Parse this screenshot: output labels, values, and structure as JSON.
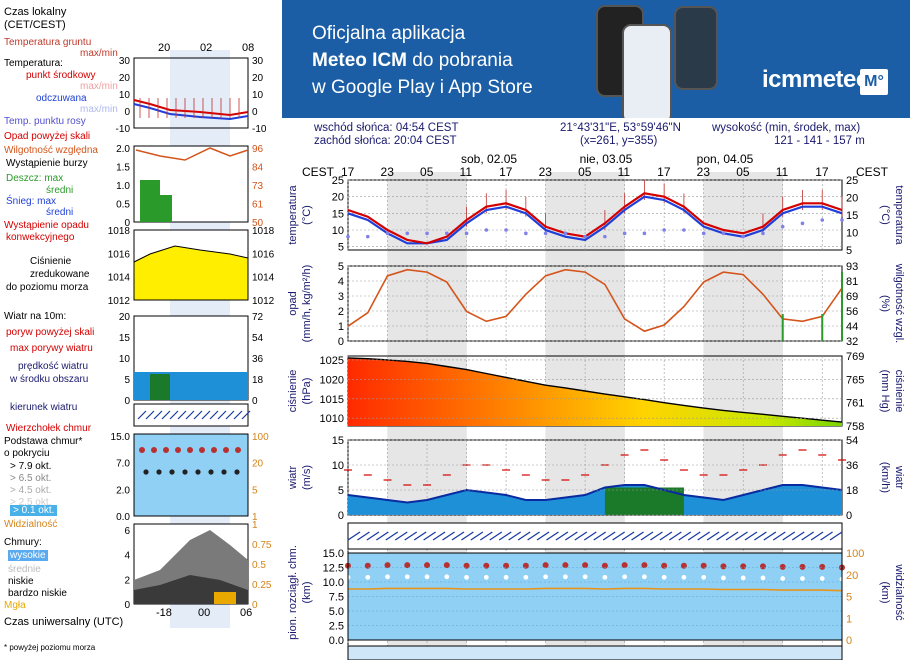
{
  "banner": {
    "line1": "Oficjalna aplikacja",
    "line2_bold": "Meteo ICM",
    "line2_rest": " do pobrania",
    "line3": "w Google Play i App Store",
    "logo": "icmmeteo",
    "logo_mark": "M°"
  },
  "meta": {
    "sunrise": "wschód słońca: 04:54 CEST",
    "sunset": "zachód słońca: 20:04 CEST",
    "coords": "21°43'31\"E, 53°59'46\"N",
    "grid": "(x=261, y=355)",
    "elev_label": "wysokość (min, środek, max)",
    "elev_values": "121 - 141 - 157 m"
  },
  "time_axis": {
    "top_label": "CEST",
    "hours": [
      "17",
      "23",
      "05",
      "11",
      "17",
      "23",
      "05",
      "11",
      "17",
      "23",
      "05",
      "11",
      "17"
    ],
    "days": [
      "sob, 02.05",
      "nie, 03.05",
      "pon, 04.05"
    ]
  },
  "legend": {
    "local_time": "Czas lokalny",
    "local_time_sub": "(CET/CEST)",
    "local_ticks": [
      "20",
      "02",
      "08"
    ],
    "soil_temp": "Temperatura gruntu",
    "soil_temp_sub": "max/min",
    "temperature": "Temperatura:",
    "mid_point": "punkt środkowy",
    "max_min": "max/min",
    "feels": "odczuwana",
    "max_min2": "max/min",
    "dew": "Temp. punktu rosy",
    "temp_ticks": [
      "30",
      "20",
      "10",
      "0",
      "-10"
    ],
    "precip_over": "Opad powyżej skali",
    "humidity": "Wilgotność względna",
    "storm": "Wystąpienie burzy",
    "rain_max": "Deszcz: max",
    "rain_avg": "średni",
    "snow_max": "Śnieg: max",
    "snow_avg": "średni",
    "conv": "Wystąpienie opadu",
    "conv2": "konwekcyjnego",
    "precip_ticks": [
      "2.0",
      "1.5",
      "1.0",
      "0.5",
      "0"
    ],
    "hum_ticks": [
      "96",
      "84",
      "73",
      "61",
      "50"
    ],
    "pressure": "Ciśnienie",
    "pressure2": "zredukowane",
    "pressure3": "do poziomu morza",
    "pres_ticks": [
      "1018",
      "1016",
      "1014",
      "1012"
    ],
    "wind": "Wiatr na 10m:",
    "gust_over": "poryw powyżej skali",
    "gust_max": "max porywy wiatru",
    "wind_speed": "prędkość wiatru",
    "wind_avg": "w środku obszaru",
    "wind_ticks": [
      "20",
      "15",
      "10",
      "5",
      "0"
    ],
    "wind_kmh": [
      "72",
      "54",
      "36",
      "18",
      "0"
    ],
    "wind_dir": "kierunek wiatru",
    "cloud_top": "Wierzchołek chmur",
    "cloud_base": "Podstawa chmur*",
    "cover": "o pokryciu",
    "okt1": "> 7.9 okt.",
    "okt2": "> 6.5 okt.",
    "okt3": "> 4.5 okt.",
    "okt4": "> 2.5 okt.",
    "okt5": "> 0.1 okt.",
    "cb_ticks": [
      "15.0",
      "7.0",
      "2.0",
      "0.0"
    ],
    "vis": "Widzialność",
    "vis_ticks": [
      "100",
      "20",
      "5",
      "1"
    ],
    "clouds": "Chmury:",
    "high": "wysokie",
    "mid": "średnie",
    "low": "niskie",
    "vlow": "bardzo niskie",
    "fog": "Mgła",
    "cl_ticks": [
      "6",
      "4",
      "2",
      "0"
    ],
    "cl_frac": [
      "1",
      "0.75",
      "0.5",
      "0.25",
      "0"
    ],
    "utc": "Czas uniwersalny (UTC)",
    "utc_ticks": [
      "18",
      "00",
      "06"
    ],
    "footnote": "* powyżej poziomu morza"
  },
  "panels": {
    "temp": {
      "left": "temperatura",
      "left2": "(°C)",
      "right": "temperatura",
      "right2": "(°C)"
    },
    "precip": {
      "left": "opad",
      "left2": "(mm/h, kg/m²/h)",
      "right": "wilgotność wzgl.",
      "right2": "(%)"
    },
    "pres": {
      "left": "ciśnienie",
      "left2": "(hPa)",
      "right": "ciśnienie",
      "right2": "(mm Hg)"
    },
    "wind": {
      "left": "wiatr",
      "left2": "(m/s)",
      "right": "wiatr",
      "right2": "(km/h)"
    },
    "cloud": {
      "left": "pion. rozciągł. chm.",
      "left2": "(km)",
      "right": "widzialność",
      "right2": "(km)"
    }
  },
  "colors": {
    "banner": "#1b5ea6",
    "temp": "#d40000",
    "feels": "#1f3fd8",
    "dew": "#8080e8",
    "humidity": "#d4541a",
    "pressure_fill": "#ffee00",
    "wind_line": "#0a2aa0",
    "navy": "#1a1a6e"
  },
  "chart_data": [
    {
      "type": "line",
      "title": "temperatura",
      "ylabel": "(°C)",
      "x": [
        "17",
        "20",
        "23",
        "02",
        "05",
        "08",
        "11",
        "14",
        "17",
        "20",
        "23",
        "02",
        "05",
        "08",
        "11",
        "14",
        "17",
        "20",
        "23",
        "02",
        "05",
        "08",
        "11",
        "14",
        "17",
        "20"
      ],
      "ylim": [
        4,
        25
      ],
      "yticks": [
        5,
        10,
        15,
        20,
        25
      ],
      "series": [
        {
          "name": "Temperatura",
          "values": [
            16,
            14,
            10,
            7,
            6,
            8,
            13,
            17,
            18,
            16,
            11,
            9,
            8,
            12,
            17,
            21,
            20,
            17,
            12,
            10,
            9,
            11,
            16,
            18,
            18,
            16
          ]
        },
        {
          "name": "odczuwana",
          "values": [
            15,
            13,
            9,
            6,
            6,
            7,
            12,
            16,
            17,
            15,
            10,
            8,
            7,
            11,
            16,
            20,
            19,
            16,
            11,
            9,
            8,
            10,
            15,
            17,
            17,
            15
          ]
        },
        {
          "name": "Temp. punktu rosy",
          "values": [
            8,
            8,
            9,
            9,
            9,
            9,
            9,
            10,
            10,
            9,
            9,
            9,
            8,
            8,
            9,
            9,
            10,
            10,
            9,
            9,
            8,
            9,
            11,
            12,
            13,
            13
          ]
        }
      ]
    },
    {
      "type": "line",
      "title": "opad / wilgotność wzgl.",
      "ylim": [
        0,
        5
      ],
      "yticks": [
        0,
        1,
        2,
        3,
        4,
        5
      ],
      "y2ticks": [
        32,
        44,
        56,
        69,
        81,
        93
      ],
      "series": [
        {
          "name": "Wilgotność względna",
          "values": [
            44,
            55,
            85,
            90,
            88,
            80,
            56,
            48,
            52,
            70,
            85,
            90,
            88,
            78,
            50,
            40,
            45,
            60,
            80,
            88,
            86,
            70,
            50,
            48,
            52,
            75
          ]
        },
        {
          "name": "Deszcz",
          "values": [
            0,
            0,
            0,
            0,
            0,
            0,
            0,
            0,
            0,
            0,
            0,
            0,
            0,
            0,
            0,
            0,
            0,
            0,
            0,
            0,
            0,
            0,
            1.8,
            0,
            1.8,
            4.6
          ]
        }
      ]
    },
    {
      "type": "area",
      "title": "ciśnienie",
      "ylim": [
        1008,
        1026
      ],
      "yticks": [
        1010,
        1015,
        1020,
        1025
      ],
      "y2ticks": [
        758,
        761,
        765,
        769
      ],
      "series": [
        {
          "name": "Ciśnienie",
          "values": [
            1025.5,
            1025.3,
            1025,
            1024.6,
            1024.1,
            1023.3,
            1022.5,
            1021.5,
            1020.5,
            1019.5,
            1018.5,
            1017.8,
            1017,
            1016.2,
            1015.5,
            1014.8,
            1014,
            1013.3,
            1012.6,
            1012,
            1011.5,
            1011,
            1010.5,
            1010,
            1009.5,
            1009
          ]
        }
      ]
    },
    {
      "type": "line",
      "title": "wiatr",
      "ylim": [
        0,
        15
      ],
      "yticks": [
        0,
        5,
        10,
        15
      ],
      "y2ticks": [
        0,
        18,
        36,
        54
      ],
      "series": [
        {
          "name": "prędkość wiatru",
          "values": [
            4,
            3.5,
            3,
            2.5,
            3,
            4,
            5,
            4.5,
            4,
            3,
            3,
            3.5,
            4,
            5.5,
            6,
            6,
            5,
            4,
            3.5,
            3,
            4,
            5,
            6,
            6,
            5.5,
            5
          ]
        },
        {
          "name": "max porywy wiatru",
          "values": [
            9,
            8,
            7,
            6,
            6,
            8,
            10,
            10,
            9,
            8,
            7,
            7,
            8,
            10,
            12,
            13,
            11,
            9,
            8,
            8,
            9,
            10,
            12,
            13,
            12,
            11
          ]
        }
      ]
    },
    {
      "type": "scatter",
      "title": "pion. rozciągł. chm. / widzialność",
      "ylim": [
        0,
        15
      ],
      "yticks": [
        0,
        2.5,
        5,
        7.5,
        10,
        12.5,
        15
      ],
      "y2ticks": [
        0,
        1,
        5,
        20,
        100
      ],
      "series": [
        {
          "name": "Podstawa chmur",
          "values": [
            12.8,
            12.8,
            12.9,
            12.9,
            12.9,
            12.9,
            12.8,
            12.8,
            12.8,
            12.8,
            12.9,
            12.9,
            12.9,
            12.8,
            12.9,
            12.9,
            12.8,
            12.8,
            12.8,
            12.7,
            12.7,
            12.7,
            12.6,
            12.6,
            12.6,
            12.5
          ]
        }
      ]
    }
  ]
}
